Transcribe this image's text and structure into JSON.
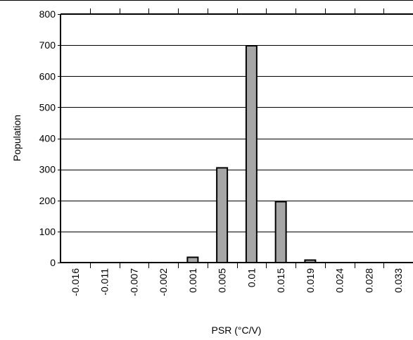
{
  "chart_data": {
    "type": "bar",
    "categories": [
      "-0.016",
      "-0.011",
      "-0.007",
      "-0.002",
      "0.001",
      "0.005",
      "0.01",
      "0.015",
      "0.019",
      "0.024",
      "0.028",
      "0.033"
    ],
    "values": [
      0,
      0,
      0,
      0,
      17,
      305,
      698,
      196,
      8,
      0,
      0,
      0
    ],
    "xlabel": "PSR (°C/V)",
    "ylabel": "Population",
    "ylim": [
      0,
      800
    ],
    "yticks": [
      0,
      100,
      200,
      300,
      400,
      500,
      600,
      700,
      800
    ],
    "grid": "horizontal",
    "bar_color": "#a6a6a6"
  }
}
